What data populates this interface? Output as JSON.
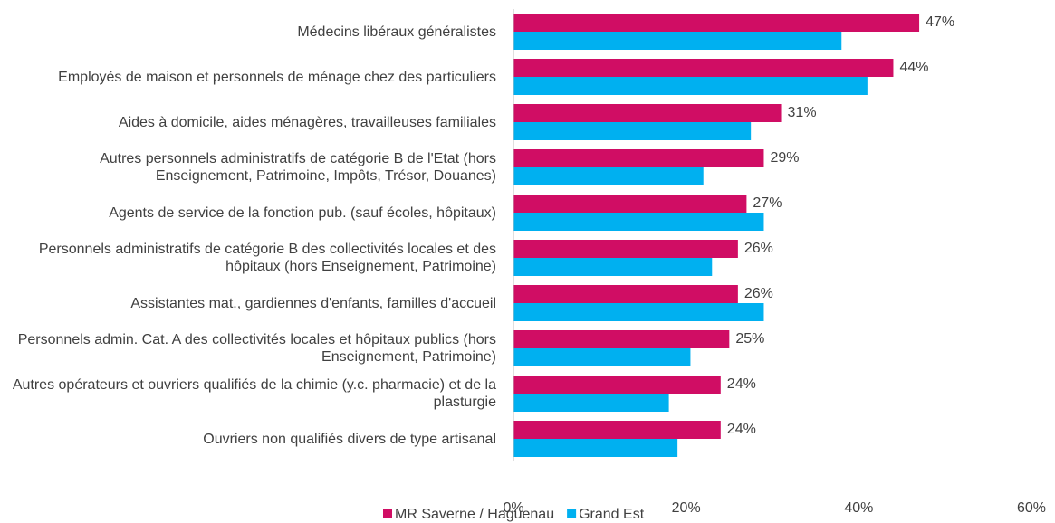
{
  "chart_data": {
    "type": "bar",
    "orientation": "horizontal",
    "categories": [
      "Médecins libéraux généralistes",
      "Employés de maison et personnels de ménage chez des particuliers",
      "Aides à domicile, aides ménagères, travailleuses familiales",
      "Autres personnels administratifs de catégorie B de l'Etat (hors Enseignement, Patrimoine, Impôts, Trésor, Douanes)",
      "Agents de service de la fonction pub. (sauf écoles, hôpitaux)",
      "Personnels administratifs de catégorie B des collectivités locales et des hôpitaux (hors Enseignement, Patrimoine)",
      "Assistantes mat., gardiennes d'enfants, familles d'accueil",
      "Personnels admin. Cat. A des collectivités locales et hôpitaux publics (hors Enseignement, Patrimoine)",
      "Autres opérateurs et ouvriers qualifiés de la chimie (y.c. pharmacie) et de la plasturgie",
      "Ouvriers non qualifiés divers de type artisanal"
    ],
    "series": [
      {
        "name": "MR Saverne / Haguenau",
        "color": "#d00d64",
        "values": [
          47,
          44,
          31,
          29,
          27,
          26,
          26,
          25,
          24,
          24
        ],
        "value_labels": [
          "47%",
          "44%",
          "31%",
          "29%",
          "27%",
          "26%",
          "26%",
          "25%",
          "24%",
          "24%"
        ]
      },
      {
        "name": "Grand Est",
        "color": "#00b0f0",
        "values": [
          38,
          41,
          27.5,
          22,
          29,
          23,
          29,
          20.5,
          18,
          19
        ]
      }
    ],
    "xlim": [
      0,
      60
    ],
    "xticks": [
      {
        "value": 0,
        "label": "0%"
      },
      {
        "value": 20,
        "label": "20%"
      },
      {
        "value": 40,
        "label": "40%"
      },
      {
        "value": 60,
        "label": "60%"
      }
    ],
    "grid": false,
    "legend": "bottom"
  }
}
